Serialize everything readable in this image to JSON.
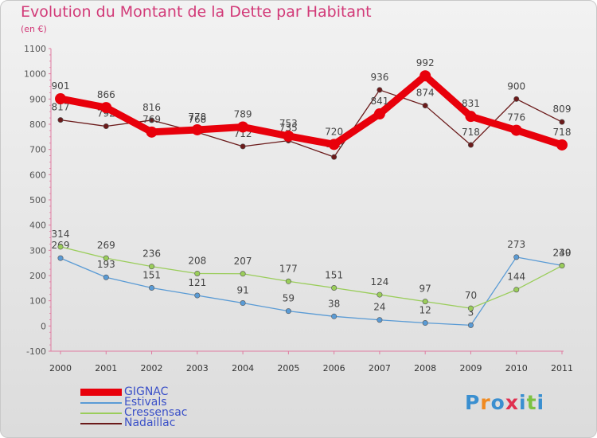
{
  "title": "Evolution du Montant de la Dette par Habitant",
  "subtitle": "(en €)",
  "logo": {
    "letters": [
      "P",
      "r",
      "o",
      "x",
      "i",
      "t",
      "i"
    ],
    "colors": [
      "#3a8fd0",
      "#f08a20",
      "#3a8fd0",
      "#e03050",
      "#3a8fd0",
      "#7cc242",
      "#3a8fd0"
    ]
  },
  "chart_data": {
    "type": "line",
    "title": "Evolution du Montant de la Dette par Habitant",
    "ylabel": "(en €)",
    "xlabel": "",
    "x": [
      "2000",
      "2001",
      "2002",
      "2003",
      "2004",
      "2005",
      "2006",
      "2007",
      "2008",
      "2009",
      "2010",
      "2011"
    ],
    "ylim": [
      -100,
      1100
    ],
    "yticks": [
      "-100",
      "0",
      "100",
      "200",
      "300",
      "400",
      "500",
      "600",
      "700",
      "800",
      "900",
      "1000",
      "1100"
    ],
    "grid": false,
    "legend": "bottom-left",
    "series": [
      {
        "name": "GIGNAC",
        "color": "#e8000b",
        "values": [
          901,
          866,
          769,
          778,
          789,
          753,
          720,
          841,
          992,
          831,
          776,
          718
        ],
        "labels": [
          "901",
          "866",
          "769",
          "778",
          "789",
          "753",
          "720",
          "841",
          "992",
          "831",
          "776",
          "718"
        ]
      },
      {
        "name": "Estivals",
        "color": "#5a9bd5",
        "values": [
          269,
          193,
          151,
          121,
          91,
          59,
          38,
          24,
          12,
          3,
          273,
          240
        ],
        "labels": [
          "269",
          "193",
          "151",
          "121",
          "91",
          "59",
          "38",
          "24",
          "12",
          "3",
          "273",
          "240"
        ]
      },
      {
        "name": "Cressensac",
        "color": "#9acd5a",
        "values": [
          314,
          269,
          236,
          208,
          207,
          177,
          151,
          124,
          97,
          70,
          144,
          239
        ],
        "labels": [
          "314",
          "269",
          "236",
          "208",
          "207",
          "177",
          "151",
          "124",
          "97",
          "70",
          "144",
          "239"
        ]
      },
      {
        "name": "Nadaillac",
        "color": "#6b1a1a",
        "values": [
          817,
          792,
          816,
          768,
          712,
          735,
          670,
          936,
          874,
          718,
          900,
          809
        ],
        "labels": [
          "817",
          "792",
          "816",
          "768",
          "712",
          "735",
          "670",
          "936",
          "874",
          "718",
          "900",
          "809"
        ]
      }
    ]
  }
}
